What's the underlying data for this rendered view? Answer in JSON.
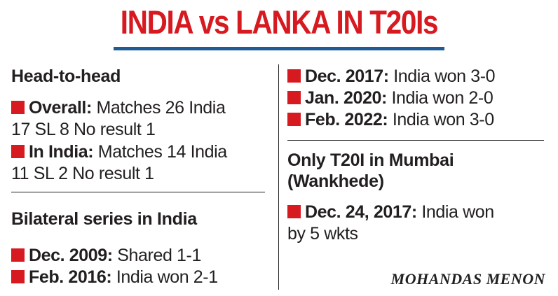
{
  "title": "INDIA vs LANKA IN T20Is",
  "head_to_head": {
    "heading": "Head-to-head",
    "overall": {
      "label": "Overall:",
      "text_line1": "Matches 26 India",
      "text_line2": "17 SL 8 No result 1"
    },
    "in_india": {
      "label": "In India:",
      "text_line1": "Matches 14 India",
      "text_line2": "11 SL 2 No result 1"
    }
  },
  "bilateral": {
    "heading": "Bilateral series in India",
    "items": [
      {
        "label": "Dec. 2009:",
        "text": "Shared 1-1"
      },
      {
        "label": "Feb. 2016:",
        "text": "India won 2-1"
      },
      {
        "label": "Dec. 2017:",
        "text": "India won 3-0"
      },
      {
        "label": "Jan. 2020:",
        "text": "India won 2-0"
      },
      {
        "label": "Feb. 2022:",
        "text": "India won 3-0"
      }
    ]
  },
  "mumbai": {
    "heading_line1": "Only T20I in Mumbai",
    "heading_line2": "(Wankhede)",
    "item": {
      "label": "Dec. 24, 2017:",
      "text_line1": "India won",
      "text_line2": "by 5 wkts"
    }
  },
  "credit": "MOHANDAS MENON",
  "colors": {
    "accent": "#d71920",
    "rule": "#1f5b96",
    "text": "#231f20"
  }
}
